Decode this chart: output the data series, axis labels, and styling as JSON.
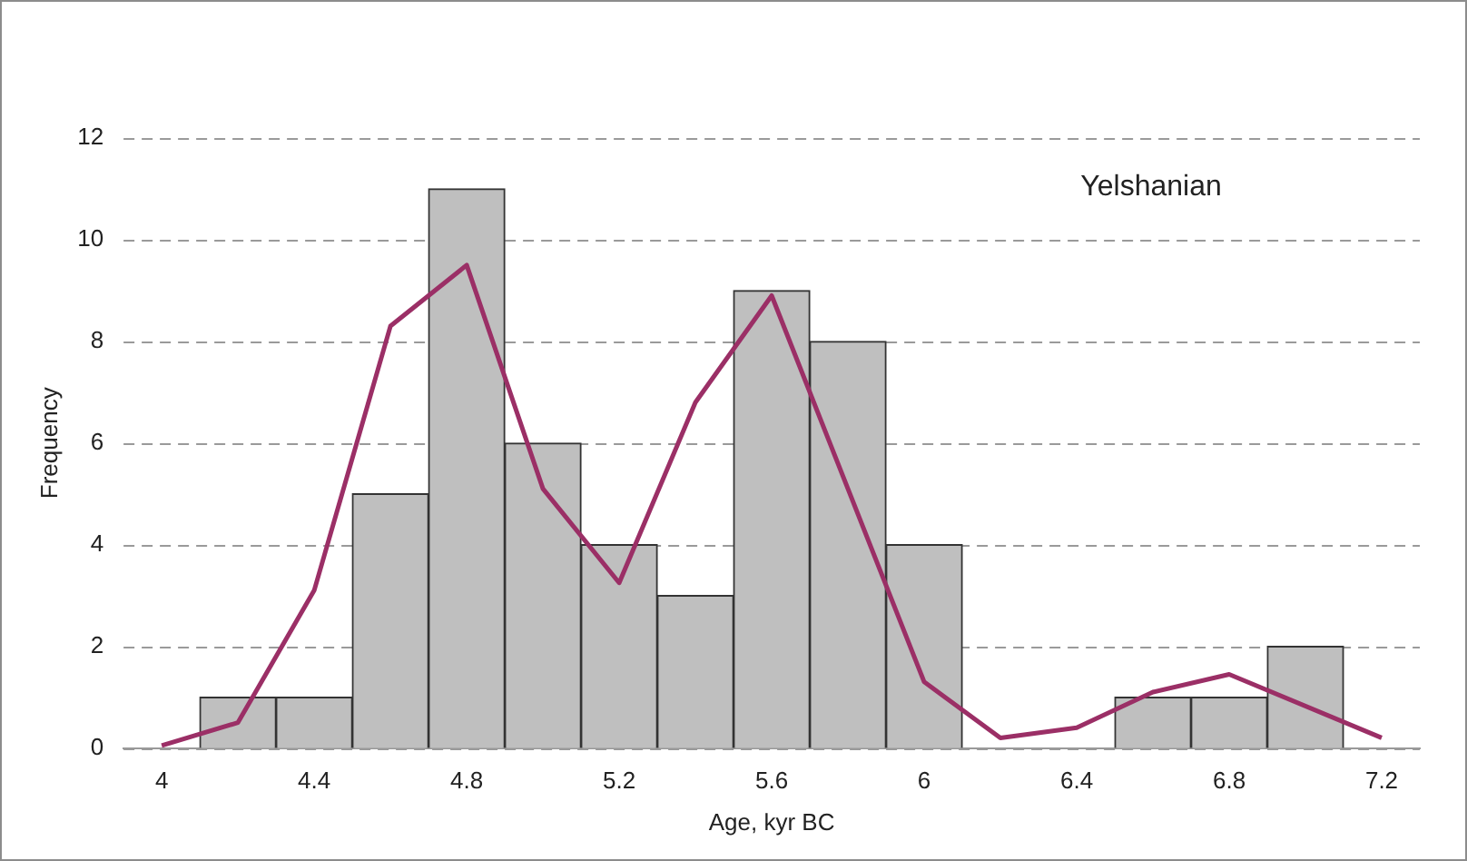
{
  "chart_data": {
    "type": "histogram",
    "xlabel": "Age, kyr BC",
    "ylabel": "Frequency",
    "annotations": [
      "Yelshanian"
    ],
    "bins": [
      4.1,
      4.3,
      4.5,
      4.7,
      4.9,
      5.1,
      5.3,
      5.5,
      5.7,
      5.9,
      6.1,
      6.3,
      6.5,
      6.7,
      6.9,
      7.1
    ],
    "values": [
      1,
      1,
      5,
      11,
      6,
      4,
      3,
      9,
      8,
      4,
      0,
      0,
      1,
      1,
      2
    ],
    "color": "#bfbfbf",
    "series": [
      {
        "type": "line",
        "color": "#9b2f66",
        "x": [
          4,
          4.2,
          4.4,
          4.6,
          4.8,
          5.0,
          5.2,
          5.4,
          5.6,
          6.0,
          6.2,
          6.4,
          6.6,
          6.8,
          7.2
        ],
        "values": [
          0.05,
          0.5,
          3.1,
          8.3,
          9.5,
          5.1,
          3.25,
          6.8,
          8.9,
          1.3,
          0.2,
          0.4,
          1.1,
          1.45,
          0.2
        ]
      }
    ],
    "xlim": [
      3.9,
      7.3
    ],
    "xticks": [
      4,
      4.4,
      4.8,
      5.2,
      5.6,
      6,
      6.4,
      6.8,
      7.2
    ],
    "ylim": [
      0,
      12
    ],
    "yticks": [
      0,
      2,
      4,
      6,
      8,
      10,
      12
    ],
    "grid": "y",
    "legend": false,
    "marker": "none",
    "line_style": "solid"
  }
}
